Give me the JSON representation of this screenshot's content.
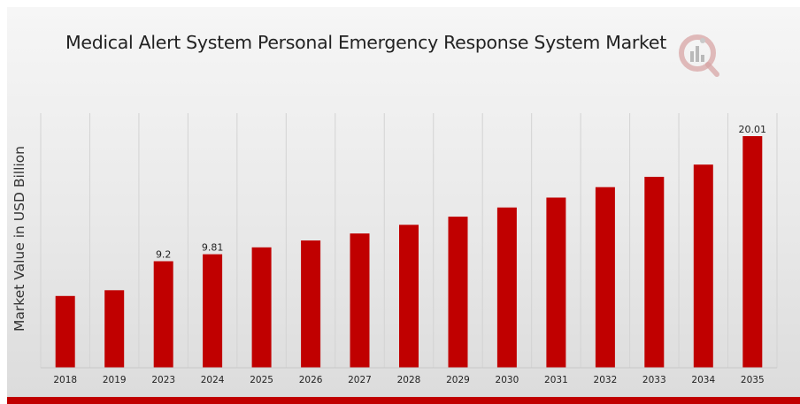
{
  "chart_data": {
    "type": "bar",
    "title": "Medical Alert System Personal Emergency Response System Market",
    "xlabel": "",
    "ylabel": "Market Value in USD Billion",
    "categories": [
      "2018",
      "2019",
      "2023",
      "2024",
      "2025",
      "2026",
      "2027",
      "2028",
      "2029",
      "2030",
      "2031",
      "2032",
      "2033",
      "2034",
      "2035"
    ],
    "values": [
      6.2,
      6.7,
      9.2,
      9.81,
      10.4,
      11.0,
      11.6,
      12.35,
      13.05,
      13.85,
      14.7,
      15.6,
      16.5,
      17.55,
      20.01
    ],
    "data_labels": {
      "2023": "9.2",
      "2024": "9.81",
      "2035": "20.01"
    },
    "ylim": [
      0,
      20.01
    ],
    "grid": "vertical",
    "bar_color": "#c00000"
  }
}
